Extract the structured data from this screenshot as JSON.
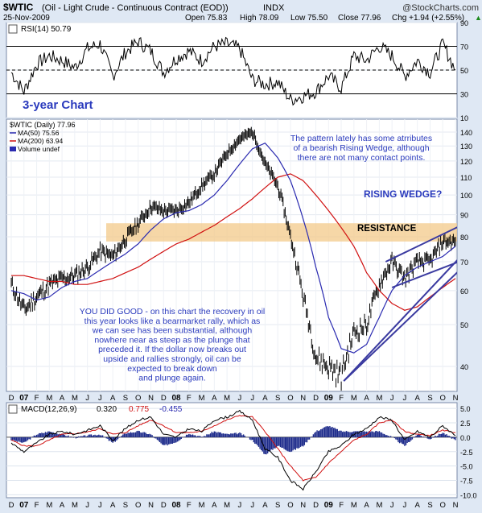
{
  "header": {
    "symbol": "$WTIC",
    "description": "(Oil - Light Crude - Continuous Contract (EOD))",
    "exchange": "INDX",
    "brand": "@StockCharts.com",
    "date": "25-Nov-2009",
    "open": "Open 75.83",
    "high": "High 78.09",
    "low": "Low 75.50",
    "close": "Close 77.96",
    "chg": "Chg +1.94 (+2.55%)",
    "chg_arrow": "▲"
  },
  "rsi_panel": {
    "label": "RSI(14) 50.79",
    "ticks": [
      "90",
      "70",
      "50",
      "30",
      "10"
    ],
    "annotation": "3-year Chart"
  },
  "price_panel": {
    "legend": {
      "main": "$WTIC (Daily) 77.96",
      "ma50": "MA(50) 75.56",
      "ma200": "MA(200) 63.94",
      "volume": "Volume undef"
    },
    "ticks": [
      "140",
      "130",
      "120",
      "110",
      "100",
      "90",
      "80",
      "70",
      "60",
      "50",
      "40"
    ],
    "annotations": {
      "wedge_note": [
        "The pattern lately has some atrributes",
        "of a bearish Rising Wedge, although",
        "there are not many contact points."
      ],
      "wedge_title": "RISING WEDGE?",
      "resistance": "RESISTANCE",
      "commentary": [
        "YOU DID GOOD - on this chart the recovery in oil",
        "this year looks like a bearmarket rally, which as",
        "we can see has been substantial, although",
        "nowhere near as steep as the plunge that",
        "preceded it. If the dollar now breaks out",
        "upside and rallies strongly, oil can be",
        "expected to break down",
        "and plunge again."
      ]
    }
  },
  "macd_panel": {
    "label": "MACD(12,26,9)",
    "v1": "0.320",
    "v2": "0.775",
    "v3": "-0.455",
    "ticks": [
      "5.0",
      "2.5",
      "0.0",
      "-2.5",
      "-5.0",
      "-7.5",
      "-10.0"
    ]
  },
  "x_axis": {
    "labels": [
      "D",
      "07",
      "F",
      "M",
      "A",
      "M",
      "J",
      "J",
      "A",
      "S",
      "O",
      "N",
      "D",
      "08",
      "F",
      "M",
      "A",
      "M",
      "J",
      "J",
      "A",
      "S",
      "O",
      "N",
      "D",
      "09",
      "F",
      "M",
      "A",
      "M",
      "J",
      "J",
      "A",
      "S",
      "O",
      "N"
    ]
  },
  "colors": {
    "background": "#dfe8f4",
    "panel": "#ffffff",
    "price": "#000000",
    "ma50": "#2a2ab0",
    "ma200": "#d01010",
    "resistance_band": "#f3c98a",
    "annotation": "#2b3bbd",
    "wedge_lines": "#3a3aa0"
  },
  "chart_data": [
    {
      "type": "line",
      "title": "RSI(14) 50.79",
      "x": [
        "Dec 2006",
        "Jan 2007",
        "Feb 2007",
        "Mar 2007",
        "Apr 2007",
        "May 2007",
        "Jun 2007",
        "Jul 2007",
        "Aug 2007",
        "Sep 2007",
        "Oct 2007",
        "Nov 2007",
        "Dec 2007",
        "Jan 2008",
        "Feb 2008",
        "Mar 2008",
        "Apr 2008",
        "May 2008",
        "Jun 2008",
        "Jul 2008",
        "Aug 2008",
        "Sep 2008",
        "Oct 2008",
        "Nov 2008",
        "Dec 2008",
        "Jan 2009",
        "Feb 2009",
        "Mar 2009",
        "Apr 2009",
        "May 2009",
        "Jun 2009",
        "Jul 2009",
        "Aug 2009",
        "Sep 2009",
        "Oct 2009",
        "Nov 2009"
      ],
      "series": [
        {
          "name": "RSI(14)",
          "values": [
            48,
            32,
            55,
            62,
            58,
            52,
            68,
            72,
            45,
            65,
            74,
            66,
            48,
            60,
            66,
            58,
            70,
            72,
            68,
            42,
            38,
            40,
            25,
            28,
            32,
            45,
            35,
            62,
            58,
            70,
            62,
            45,
            58,
            48,
            72,
            50
          ]
        }
      ],
      "ylim": [
        10,
        90
      ],
      "reference_lines": [
        70,
        50,
        30
      ],
      "grid": true
    },
    {
      "type": "line",
      "title": "$WTIC (Daily) 77.96",
      "x": [
        "Dec 2006",
        "Jan 2007",
        "Feb 2007",
        "Mar 2007",
        "Apr 2007",
        "May 2007",
        "Jun 2007",
        "Jul 2007",
        "Aug 2007",
        "Sep 2007",
        "Oct 2007",
        "Nov 2007",
        "Dec 2007",
        "Jan 2008",
        "Feb 2008",
        "Mar 2008",
        "Apr 2008",
        "May 2008",
        "Jun 2008",
        "Jul 2008",
        "Aug 2008",
        "Sep 2008",
        "Oct 2008",
        "Nov 2008",
        "Dec 2008",
        "Jan 2009",
        "Feb 2009",
        "Mar 2009",
        "Apr 2009",
        "May 2009",
        "Jun 2009",
        "Jul 2009",
        "Aug 2009",
        "Sep 2009",
        "Oct 2009",
        "Nov 2009"
      ],
      "series": [
        {
          "name": "$WTIC",
          "values": [
            62,
            54,
            58,
            62,
            64,
            65,
            68,
            74,
            72,
            79,
            86,
            94,
            92,
            92,
            96,
            105,
            112,
            125,
            135,
            140,
            118,
            105,
            80,
            58,
            42,
            40,
            38,
            48,
            50,
            62,
            70,
            64,
            70,
            70,
            78,
            78
          ]
        },
        {
          "name": "MA(50)",
          "values": [
            60,
            59,
            57,
            58,
            61,
            63,
            64,
            67,
            70,
            73,
            77,
            83,
            88,
            91,
            92,
            95,
            100,
            108,
            118,
            128,
            132,
            122,
            108,
            88,
            68,
            52,
            44,
            43,
            45,
            52,
            60,
            65,
            68,
            70,
            72,
            76
          ]
        },
        {
          "name": "MA(200)",
          "values": [
            65,
            65,
            64,
            63,
            63,
            62,
            62,
            63,
            64,
            66,
            68,
            71,
            74,
            77,
            79,
            82,
            85,
            89,
            93,
            98,
            104,
            110,
            112,
            108,
            100,
            92,
            84,
            76,
            66,
            60,
            56,
            54,
            55,
            58,
            61,
            64
          ]
        }
      ],
      "ylim": [
        35,
        150
      ],
      "scale": "log",
      "resistance_band": [
        78,
        86
      ],
      "grid": true
    },
    {
      "type": "line",
      "title": "MACD(12,26,9)",
      "x": [
        "Dec 2006",
        "Jan 2007",
        "Feb 2007",
        "Mar 2007",
        "Apr 2007",
        "May 2007",
        "Jun 2007",
        "Jul 2007",
        "Aug 2007",
        "Sep 2007",
        "Oct 2007",
        "Nov 2007",
        "Dec 2007",
        "Jan 2008",
        "Feb 2008",
        "Mar 2008",
        "Apr 2008",
        "May 2008",
        "Jun 2008",
        "Jul 2008",
        "Aug 2008",
        "Sep 2008",
        "Oct 2008",
        "Nov 2008",
        "Dec 2008",
        "Jan 2009",
        "Feb 2009",
        "Mar 2009",
        "Apr 2009",
        "May 2009",
        "Jun 2009",
        "Jul 2009",
        "Aug 2009",
        "Sep 2009",
        "Oct 2009",
        "Nov 2009"
      ],
      "series": [
        {
          "name": "MACD",
          "values": [
            -1.0,
            -2.5,
            -1.0,
            0.5,
            1.0,
            0.5,
            1.2,
            2.0,
            -0.5,
            1.5,
            3.0,
            3.5,
            0.5,
            0.0,
            1.5,
            1.0,
            3.0,
            3.5,
            4.5,
            3.0,
            -2.0,
            -3.5,
            -7.5,
            -9.0,
            -6.0,
            -2.5,
            -1.5,
            0.5,
            1.5,
            3.5,
            3.0,
            -0.5,
            1.0,
            0.0,
            2.0,
            0.3
          ]
        },
        {
          "name": "Signal",
          "values": [
            -0.5,
            -1.5,
            -1.5,
            -0.5,
            0.5,
            0.6,
            0.9,
            1.5,
            0.5,
            0.8,
            2.0,
            3.0,
            2.0,
            0.8,
            0.8,
            1.0,
            2.0,
            3.0,
            3.8,
            3.5,
            1.0,
            -2.0,
            -5.0,
            -7.5,
            -7.0,
            -4.5,
            -2.5,
            -0.5,
            0.5,
            2.5,
            3.0,
            1.0,
            0.5,
            0.3,
            1.2,
            0.8
          ]
        },
        {
          "name": "Histogram",
          "values": [
            -0.5,
            -1.0,
            0.5,
            1.0,
            0.5,
            -0.1,
            0.3,
            0.5,
            -1.0,
            0.7,
            1.0,
            0.5,
            -1.5,
            -0.8,
            0.7,
            0.0,
            1.0,
            0.5,
            0.7,
            -0.5,
            -3.0,
            -1.5,
            -2.5,
            -1.5,
            1.0,
            2.0,
            1.0,
            1.0,
            1.0,
            1.0,
            0.0,
            -1.5,
            0.5,
            -0.3,
            0.8,
            -0.5
          ]
        }
      ],
      "ylim": [
        -10.5,
        6
      ],
      "grid": true
    }
  ]
}
